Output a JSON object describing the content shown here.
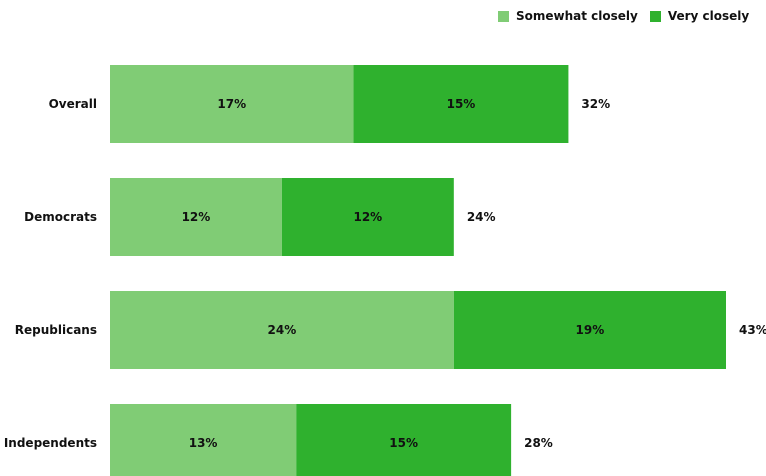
{
  "chart_data": {
    "type": "bar",
    "orientation": "horizontal",
    "stacked": true,
    "categories": [
      "Overall",
      "Democrats",
      "Republicans",
      "Independents"
    ],
    "series": [
      {
        "name": "Somewhat closely",
        "values": [
          17,
          12,
          24,
          13
        ],
        "labels": [
          "17%",
          "12%",
          "24%",
          "13%"
        ],
        "color": "#80cc75"
      },
      {
        "name": "Very closely",
        "values": [
          15,
          12,
          19,
          15
        ],
        "labels": [
          "15%",
          "12%",
          "19%",
          "15%"
        ],
        "color": "#2fb12e"
      }
    ],
    "totals": [
      32,
      24,
      43,
      28
    ],
    "total_labels": [
      "32%",
      "24%",
      "43%",
      "28%"
    ],
    "xlim": [
      0,
      43
    ],
    "legend_position": "top-right",
    "grid": false
  }
}
